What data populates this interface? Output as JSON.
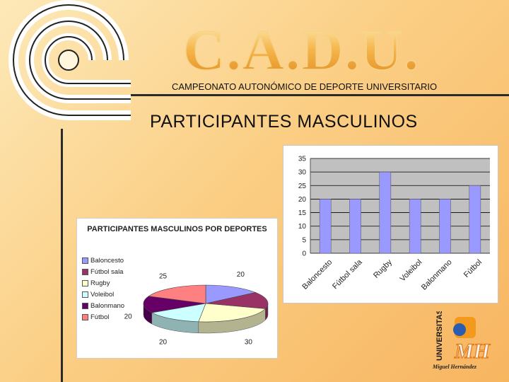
{
  "header": {
    "logo_text": "C.A.D.U.",
    "subtitle": "CAMPEONATO AUTONÓMICO DE DEPORTE UNIVERSITARIO",
    "page_title": "PARTICIPANTES MASCULINOS"
  },
  "chart_data": [
    {
      "type": "bar",
      "title": "",
      "xlabel": "",
      "ylabel": "",
      "categories": [
        "Baloncesto",
        "Fútbol sala",
        "Rugby",
        "Voleibol",
        "Balonmano",
        "Fútbol"
      ],
      "values": [
        20,
        20,
        30,
        20,
        20,
        25
      ],
      "ylim": [
        0,
        35
      ],
      "yticks": [
        0,
        5,
        10,
        15,
        20,
        25,
        30,
        35
      ],
      "grid": true,
      "colors": {
        "bar": "#9999ff",
        "plot_bg": "#c0c0c0",
        "grid": "#000000"
      }
    },
    {
      "type": "pie",
      "title": "PARTICIPANTES MASCULINOS POR DEPORTES",
      "categories": [
        "Baloncesto",
        "Fútbol sala",
        "Rugby",
        "Voleibol",
        "Balonmano",
        "Fútbol"
      ],
      "values": [
        20,
        20,
        30,
        20,
        20,
        25
      ],
      "legend": "left",
      "colors": [
        "#9999ff",
        "#993366",
        "#ffffcc",
        "#ccffff",
        "#660066",
        "#ff8080"
      ]
    }
  ],
  "branding": {
    "university_vertical": "UNIVERSITAS",
    "university_mark": "MH",
    "university_name": "Miguel Hernández"
  }
}
